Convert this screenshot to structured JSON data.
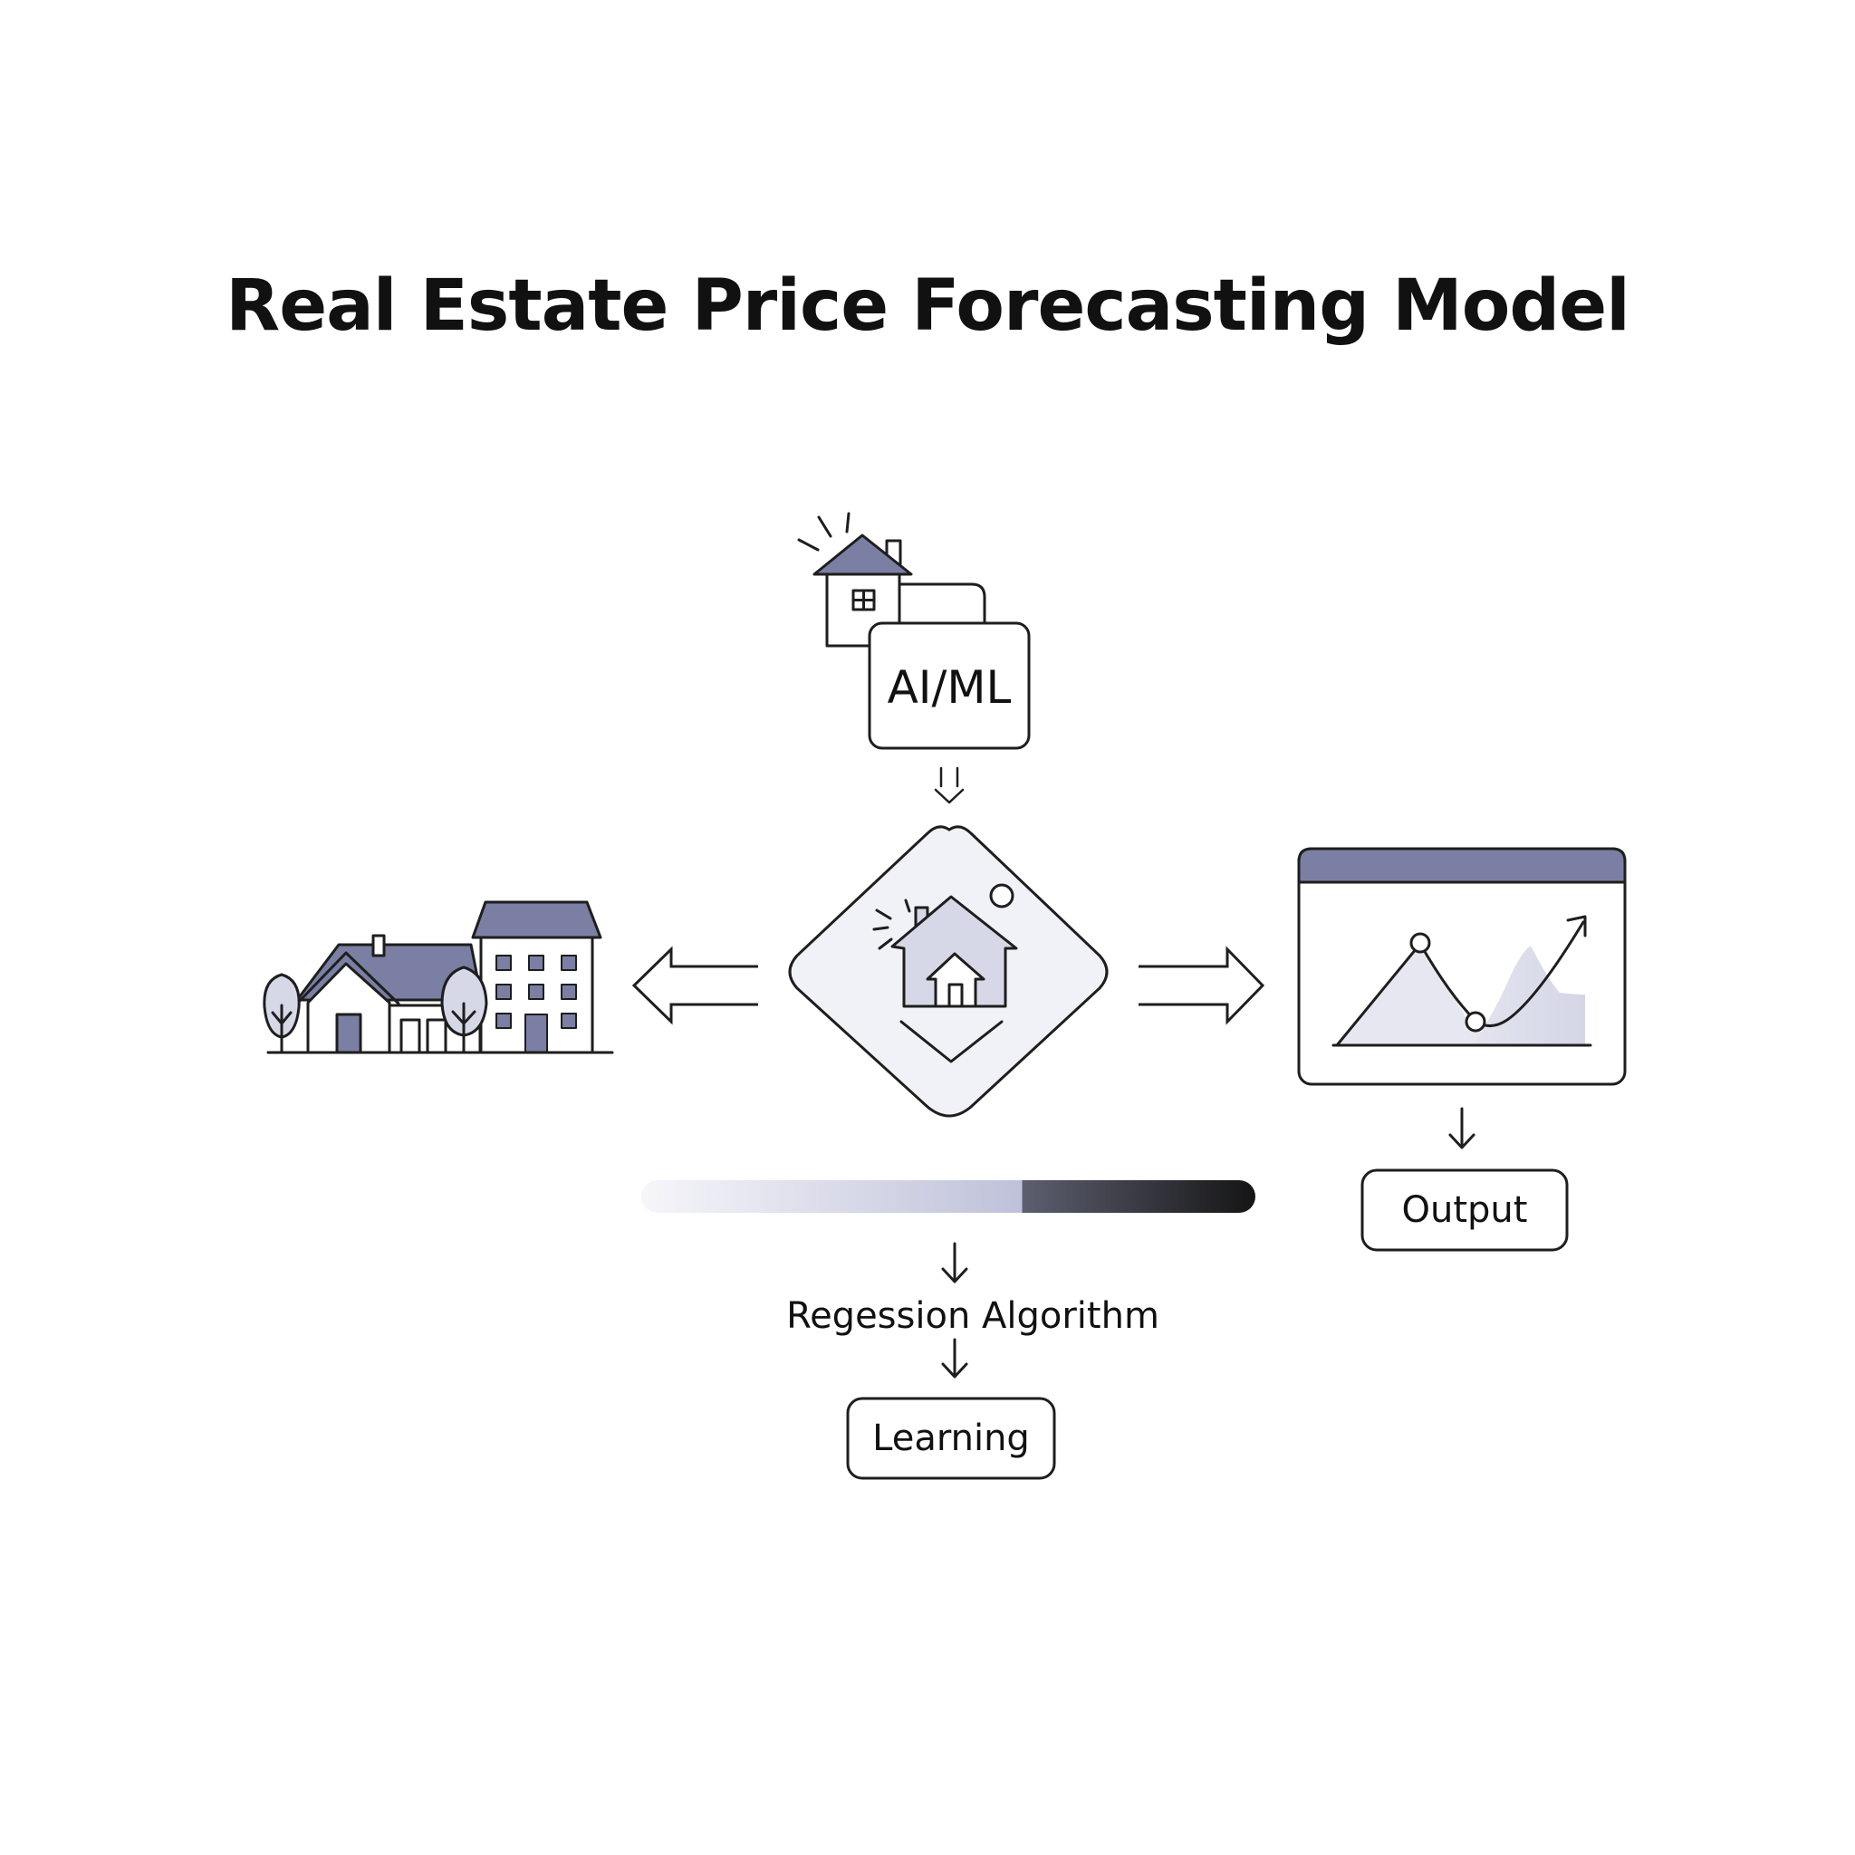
{
  "title": "Real Estate Price Forecasting Model",
  "nodes": {
    "aiml_label": "AI/ML",
    "algorithm_label": "Regession Algorithm",
    "learning_label": "Learning",
    "output_label": "Output"
  },
  "icons": {
    "input_properties": "neighborhood-houses-icon",
    "model_source": "house-with-ai-card-icon",
    "core_model": "diamond-house-model-icon",
    "forecast_output": "price-forecast-chart-window-icon"
  },
  "colors": {
    "accent": "#7a7fa3",
    "accent_light": "#d6d8e8",
    "panel_bg": "#f1f2f7",
    "stroke": "#1e1e1e",
    "progress_dark": "#1a1a1a"
  },
  "progress": {
    "fill_fraction": 0.62
  }
}
